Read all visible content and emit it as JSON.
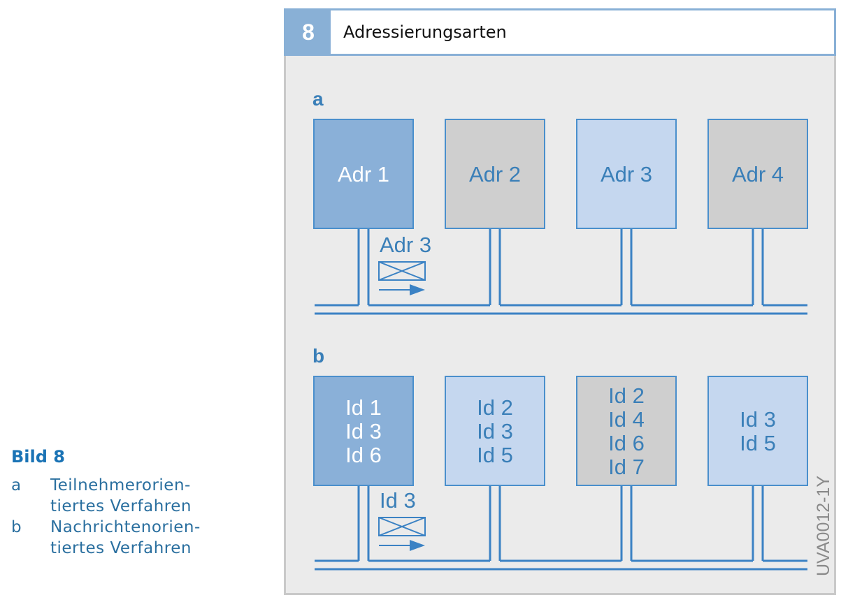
{
  "figure": {
    "caption_title": "Bild 8",
    "caption_items": [
      {
        "key": "a",
        "text": "Teilnehmerorien-\ntiertes Verfahren"
      },
      {
        "key": "b",
        "text": "Nachrichtenorien-\ntiertes Verfahren"
      }
    ],
    "panel_number": "8",
    "panel_title": "Adressierungsarten",
    "code": "UVA0012-1Y"
  },
  "section_a": {
    "label": "a",
    "boxes": [
      {
        "lines": [
          "Adr 1"
        ],
        "fill": "#8ab0d8"
      },
      {
        "lines": [
          "Adr 2"
        ],
        "fill": "#cfcfcf"
      },
      {
        "lines": [
          "Adr 3"
        ],
        "fill": "#c5d7ef"
      },
      {
        "lines": [
          "Adr 4"
        ],
        "fill": "#cfcfcf"
      }
    ],
    "message": "Adr 3"
  },
  "section_b": {
    "label": "b",
    "boxes": [
      {
        "lines": [
          "Id 1",
          "Id 3",
          "Id 6"
        ],
        "fill": "#8ab0d8"
      },
      {
        "lines": [
          "Id 2",
          "Id 3",
          "Id 5"
        ],
        "fill": "#c5d7ef"
      },
      {
        "lines": [
          "Id 2",
          "Id 4",
          "Id 6",
          "Id 7"
        ],
        "fill": "#cfcfcf"
      },
      {
        "lines": [
          "Id 3",
          "Id 5"
        ],
        "fill": "#c5d7ef"
      }
    ],
    "message": "Id 3"
  },
  "colors": {
    "accent": "#3b82c4",
    "text": "#3a7fb8",
    "box_border": "#4a8fcc"
  }
}
